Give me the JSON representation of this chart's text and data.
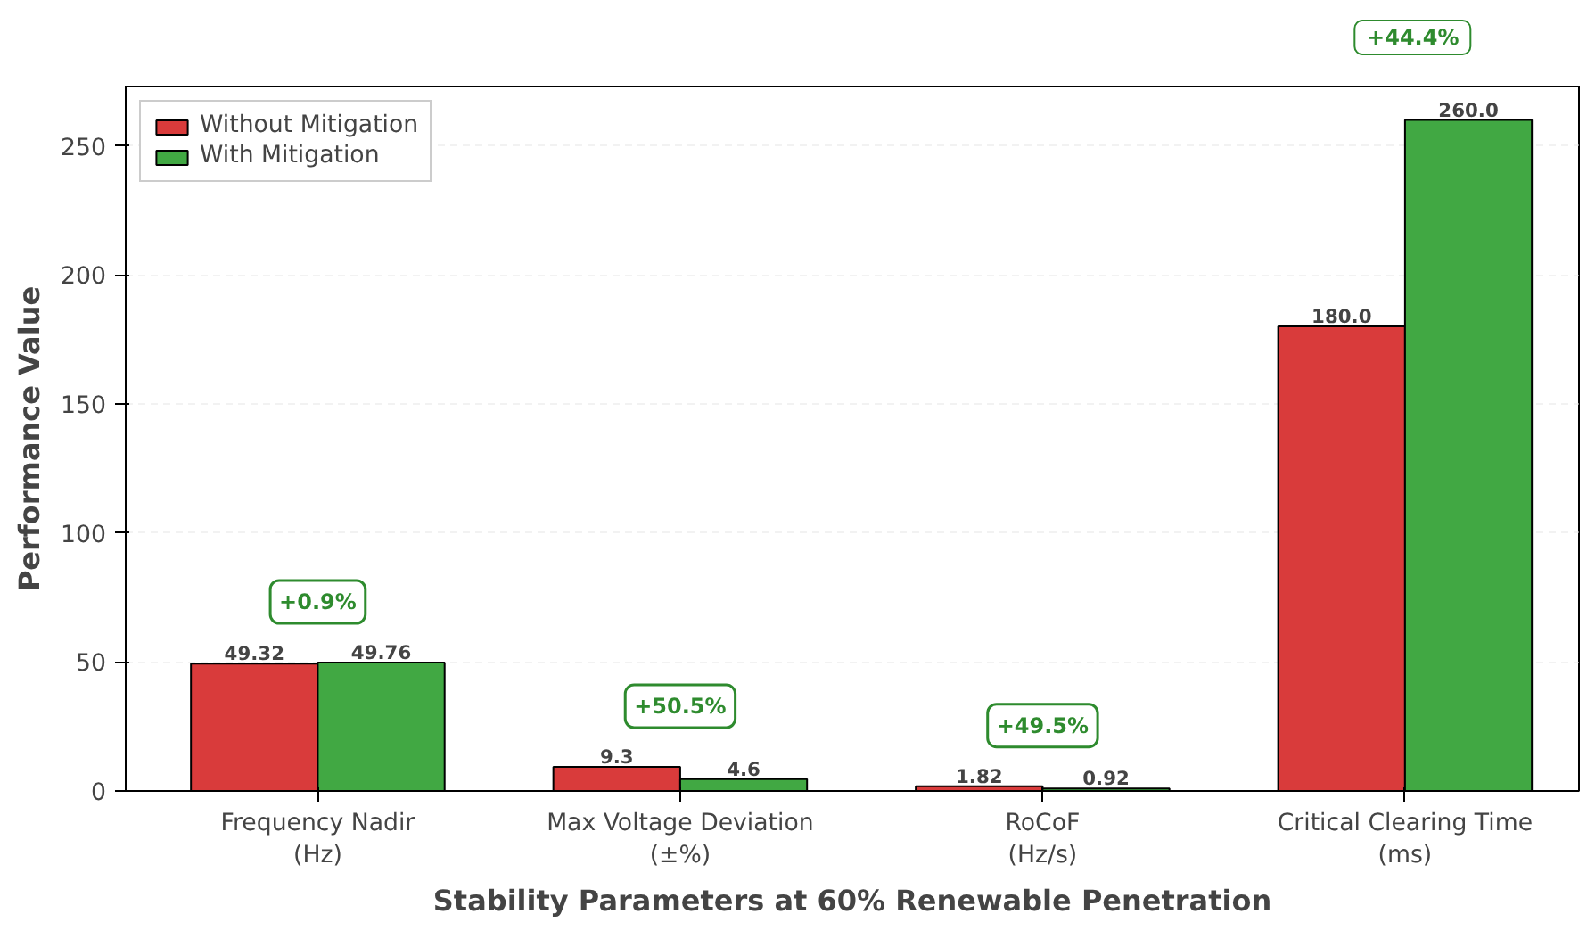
{
  "chart_data": {
    "type": "bar",
    "xlabel": "Stability Parameters at 60% Renewable Penetration",
    "ylabel": "Performance Value",
    "categories": [
      "Frequency Nadir\n(Hz)",
      "Max Voltage Deviation\n(±%)",
      "RoCoF\n(Hz/s)",
      "Critical Clearing Time\n(ms)"
    ],
    "series": [
      {
        "name": "Without Mitigation",
        "color": "#d93b3b",
        "values": [
          49.32,
          9.3,
          1.82,
          180.0
        ],
        "value_labels": [
          "49.32",
          "9.3",
          "1.82",
          "180.0"
        ]
      },
      {
        "name": "With Mitigation",
        "color": "#41a843",
        "values": [
          49.76,
          4.6,
          0.92,
          260.0
        ],
        "value_labels": [
          "49.76",
          "4.6",
          "0.92",
          "260.0"
        ]
      }
    ],
    "ylim": [
      0,
      273
    ],
    "yticks": [
      0,
      50,
      100,
      150,
      200,
      250
    ],
    "grid": "y",
    "legend": "top left",
    "annotations": [
      "+0.9%",
      "+50.5%",
      "+49.5%",
      "+44.4%"
    ]
  }
}
